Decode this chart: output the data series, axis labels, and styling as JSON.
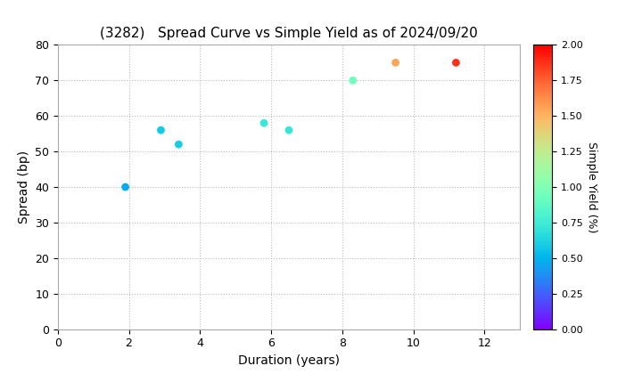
{
  "title": "(3282)   Spread Curve vs Simple Yield as of 2024/09/20",
  "xlabel": "Duration (years)",
  "ylabel": "Spread (bp)",
  "colorbar_label": "Simple Yield (%)",
  "xlim": [
    0,
    13
  ],
  "ylim": [
    0,
    80
  ],
  "xticks": [
    0,
    2,
    4,
    6,
    8,
    10,
    12
  ],
  "yticks": [
    0,
    10,
    20,
    30,
    40,
    50,
    60,
    70,
    80
  ],
  "colorbar_ticks": [
    0.0,
    0.25,
    0.5,
    0.75,
    1.0,
    1.25,
    1.5,
    1.75,
    2.0
  ],
  "colormap": "rainbow",
  "vmin": 0.0,
  "vmax": 2.0,
  "points": [
    {
      "duration": 1.9,
      "spread": 40,
      "simple_yield": 0.47
    },
    {
      "duration": 2.9,
      "spread": 56,
      "simple_yield": 0.58
    },
    {
      "duration": 3.4,
      "spread": 52,
      "simple_yield": 0.6
    },
    {
      "duration": 5.8,
      "spread": 58,
      "simple_yield": 0.72
    },
    {
      "duration": 6.5,
      "spread": 56,
      "simple_yield": 0.72
    },
    {
      "duration": 8.3,
      "spread": 70,
      "simple_yield": 0.93
    },
    {
      "duration": 9.5,
      "spread": 75,
      "simple_yield": 1.55
    },
    {
      "duration": 11.2,
      "spread": 75,
      "simple_yield": 1.88
    }
  ],
  "marker_size": 40,
  "background_color": "#ffffff",
  "grid_color": "#bbbbbb",
  "grid_style": "dotted",
  "title_fontsize": 11,
  "axis_fontsize": 10,
  "tick_fontsize": 9
}
